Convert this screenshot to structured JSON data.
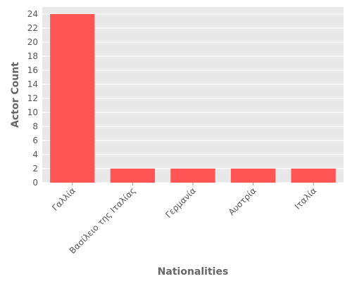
{
  "chart_data": {
    "type": "bar",
    "categories": [
      "Γαλλία",
      "Βασίλειο της Ιταλίας",
      "Γερμανία",
      "Αυστρία",
      "Ιταλία"
    ],
    "values": [
      24,
      2,
      2,
      2,
      2
    ],
    "xlabel": "Nationalities",
    "ylabel": "Actor Count",
    "ylim": [
      0,
      25
    ],
    "yticks": [
      0,
      2,
      4,
      6,
      8,
      10,
      12,
      14,
      16,
      18,
      20,
      22,
      24
    ],
    "grid": true,
    "legend": "none",
    "colors": {
      "bar": "#ff5555",
      "plot_background": "#e8e8e8",
      "grid": "#ffffff"
    }
  }
}
